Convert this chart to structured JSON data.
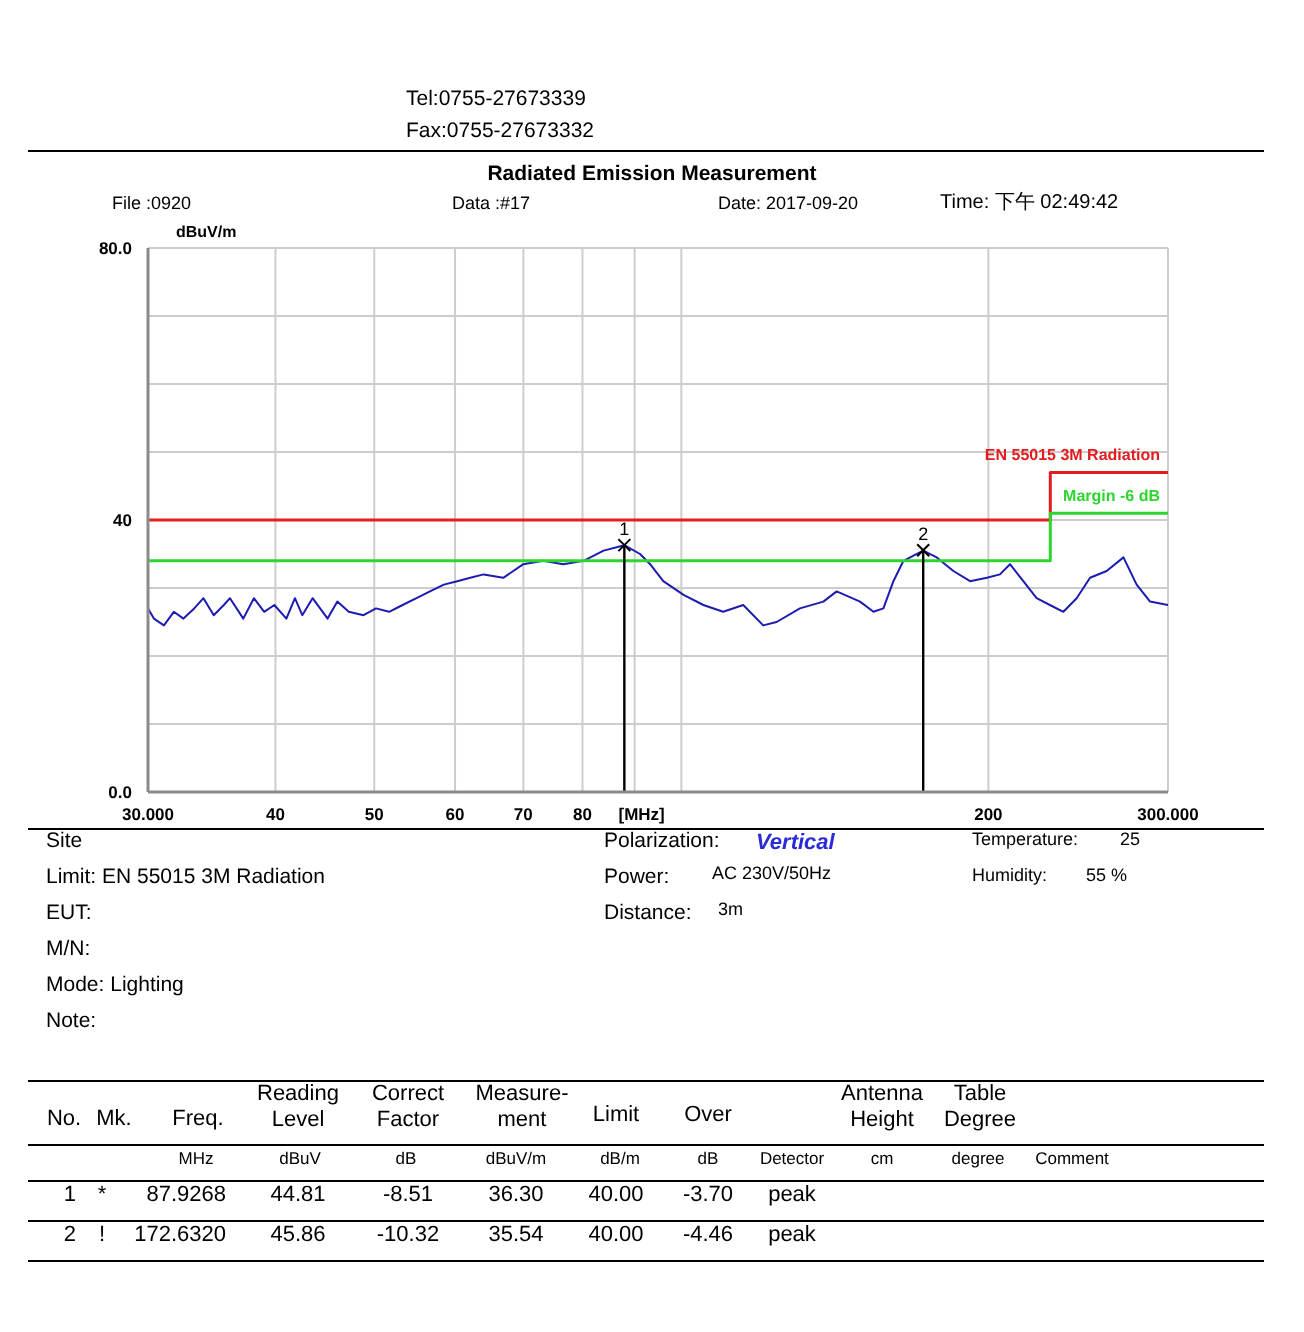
{
  "chart_data": {
    "type": "line",
    "title": "Radiated Emission Measurement",
    "xlabel": "[MHz]",
    "ylabel": "dBuV/m",
    "log": "x",
    "xlim": [
      30,
      300
    ],
    "xticks": [
      {
        "value": 30,
        "label": "30.000"
      },
      40,
      50,
      60,
      70,
      80,
      {
        "value": 90,
        "label": null
      },
      {
        "value": 100,
        "label": null
      },
      200,
      {
        "value": 300,
        "label": "300.000"
      }
    ],
    "ylim": [
      0,
      80
    ],
    "yticks": [
      {
        "value": 0,
        "label": "0.0"
      },
      {
        "value": 10,
        "label": null
      },
      {
        "value": 20,
        "label": null
      },
      {
        "value": 30,
        "label": null
      },
      40,
      {
        "value": 50,
        "label": null
      },
      {
        "value": 60,
        "label": null
      },
      {
        "value": 70,
        "label": null
      },
      {
        "value": 80,
        "label": "80.0"
      }
    ],
    "grid": true,
    "legend": false,
    "marker": "none",
    "line_style": "solid",
    "series": [
      {
        "color": "#1c1cb0",
        "x": [
          30.0,
          30.4,
          31.1,
          31.8,
          32.5,
          33.3,
          34.0,
          34.8,
          35.6,
          36.1,
          37.2,
          38.1,
          39.0,
          39.9,
          41.0,
          41.8,
          42.5,
          43.5,
          45.0,
          46.0,
          47.2,
          48.8,
          50.2,
          51.7,
          53.3,
          55.0,
          56.7,
          58.5,
          60.3,
          62.1,
          64.0,
          66.9,
          70.0,
          73.2,
          76.6,
          80.2,
          83.9,
          87.9268,
          91.1,
          93.2,
          96.0,
          100.5,
          105.1,
          109.9,
          115.0,
          120.3,
          124.0,
          130.7,
          137.8,
          142.0,
          149.7,
          154.3,
          157.8,
          161.4,
          165.1,
          172.632,
          178.0,
          184.8,
          191.9,
          199.3,
          205.3,
          210.0,
          216.4,
          223.0,
          229.8,
          236.9,
          244.1,
          251.6,
          261.2,
          271.3,
          279.5,
          288.1,
          300.0
        ],
        "values": [
          27,
          25.5,
          24.5,
          26.5,
          25.5,
          27,
          28.5,
          26,
          27.5,
          28.5,
          25.5,
          28.5,
          26.5,
          27.5,
          25.5,
          28.5,
          26,
          28.5,
          25.5,
          28,
          26.5,
          26,
          27,
          26.5,
          27.5,
          28.5,
          29.5,
          30.5,
          31,
          31.5,
          32,
          31.5,
          33.5,
          34,
          33.5,
          34,
          35.5,
          36.3,
          35,
          33.5,
          31,
          29,
          27.5,
          26.5,
          27.5,
          24.5,
          25,
          27,
          28,
          29.5,
          28,
          26.5,
          27,
          31,
          34,
          35.5,
          34.5,
          32.5,
          31,
          31.5,
          32,
          33.5,
          31,
          28.5,
          27.5,
          26.5,
          28.5,
          31.5,
          32.5,
          34.5,
          30.5,
          28,
          27.5
        ]
      },
      {
        "name": "EN 55015 3M Radiation",
        "color": "#e31d1d",
        "x": [
          30,
          230,
          230,
          300
        ],
        "values": [
          40,
          40,
          47,
          47
        ]
      },
      {
        "name": "Margin -6 dB",
        "color": "#2fd52f",
        "x": [
          30,
          230,
          230,
          300
        ],
        "values": [
          34,
          34,
          41,
          41
        ]
      }
    ],
    "annotations": [
      {
        "text": "1",
        "x": 87.9268,
        "y": 36.3
      },
      {
        "text": "2",
        "x": 172.632,
        "y": 35.54
      },
      "Tel:0755-27673339",
      "Fax:0755-27673332",
      "File :0920",
      "Data :#17",
      "Date: 2017-09-20",
      "Time: 下午 02:49:42",
      "Site",
      "Limit: EN 55015 3M Radiation",
      "EUT:",
      "M/N:",
      "Mode: Lighting",
      "Note:",
      "Polarization:",
      "Vertical",
      "Power:",
      "AC 230V/50Hz",
      "Distance:",
      "3m",
      "Temperature:",
      "25",
      "Humidity:",
      "55 %",
      "No.",
      "Mk.",
      "Freq.",
      "Reading Level",
      "Correct Factor",
      "Measure-ment",
      "Limit",
      "Over",
      "Antenna Height",
      "Table Degree",
      "MHz",
      "dBuV",
      "dB",
      "dBuV/m",
      "dB/m",
      "dB",
      "Detector",
      "cm",
      "degree",
      "Comment",
      "1",
      "*",
      "87.9268",
      "44.81",
      "-8.51",
      "36.30",
      "40.00",
      "-3.70",
      "peak",
      "2",
      "!",
      "172.6320",
      "45.86",
      "-10.32",
      "35.54",
      "40.00",
      "-4.46",
      "peak"
    ]
  }
}
